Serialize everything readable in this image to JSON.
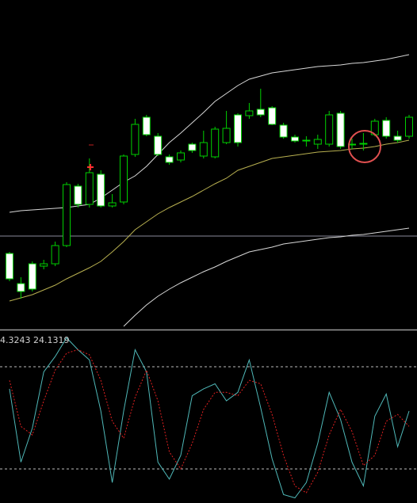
{
  "chart_data": [
    {
      "type": "candlestick",
      "ylim": [
        0,
        415
      ],
      "open": [
        95,
        57,
        82,
        79,
        82,
        105,
        180,
        157,
        195,
        155,
        160,
        220,
        267,
        243,
        217,
        213,
        233,
        218,
        217,
        235,
        270,
        269,
        277,
        279,
        257,
        242,
        238,
        233,
        233,
        272,
        233,
        234,
        245,
        263,
        243,
        243
      ],
      "high": [
        97,
        65,
        85,
        87,
        110,
        185,
        183,
        215,
        200,
        170,
        220,
        265,
        270,
        247,
        220,
        225,
        235,
        250,
        255,
        275,
        272,
        285,
        303,
        281,
        260,
        245,
        243,
        245,
        275,
        275,
        240,
        247,
        265,
        267,
        250,
        270
      ],
      "low": [
        60,
        38,
        47,
        75,
        79,
        103,
        153,
        153,
        153,
        153,
        157,
        217,
        243,
        218,
        207,
        210,
        222,
        215,
        215,
        233,
        230,
        265,
        267,
        257,
        240,
        235,
        230,
        227,
        230,
        227,
        227,
        225,
        243,
        240,
        235,
        240
      ],
      "close": [
        63,
        47,
        50,
        82,
        105,
        182,
        157,
        197,
        155,
        159,
        218,
        258,
        245,
        220,
        210,
        222,
        225,
        235,
        252,
        253,
        235,
        275,
        270,
        258,
        242,
        237,
        237,
        239,
        270,
        230,
        232,
        233,
        262,
        243,
        238,
        267
      ],
      "up_color": "#00d000",
      "down_color": "#ffffff",
      "series": [
        {
          "color": "#d8d8d8",
          "values": [
            147,
            149,
            150,
            151,
            152,
            153,
            155,
            157,
            165,
            175,
            185,
            193,
            205,
            220,
            235,
            247,
            260,
            273,
            287,
            297,
            307,
            315,
            319,
            323,
            325,
            327,
            329,
            331,
            332,
            333,
            335,
            336,
            338,
            340,
            343,
            346
          ]
        },
        {
          "color": "#b8b050",
          "values": [
            35,
            39,
            43,
            49,
            55,
            63,
            70,
            77,
            85,
            97,
            110,
            125,
            135,
            145,
            153,
            160,
            167,
            175,
            183,
            190,
            200,
            205,
            210,
            215,
            217,
            219,
            221,
            223,
            224,
            225,
            227,
            228,
            230,
            233,
            235,
            238
          ]
        },
        {
          "color": "#d8d8d8",
          "values": [
            null,
            null,
            null,
            null,
            null,
            null,
            null,
            null,
            null,
            null,
            3,
            17,
            30,
            41,
            50,
            58,
            65,
            72,
            78,
            85,
            91,
            97,
            100,
            103,
            107,
            109,
            111,
            113,
            115,
            116,
            118,
            119,
            121,
            123,
            125,
            127
          ]
        }
      ],
      "level": 117,
      "level_color": "#8a8a9a"
    },
    {
      "type": "line",
      "label": "4.3243 24.1319",
      "ylim": [
        0,
        100
      ],
      "levels": [
        80,
        20
      ],
      "series": [
        {
          "color": "#4fb8b8",
          "values": [
            67,
            24,
            44,
            77,
            86,
            97,
            90,
            84,
            54,
            12,
            54,
            90,
            77,
            24,
            14,
            28,
            63,
            67,
            70,
            60,
            65,
            84,
            56,
            26,
            5,
            3,
            12,
            35,
            65,
            49,
            24,
            10,
            51,
            64,
            33,
            54
          ]
        },
        {
          "color": "#e02020",
          "dotted": true,
          "values": [
            72,
            45,
            40,
            60,
            78,
            88,
            90,
            87,
            72,
            48,
            38,
            62,
            78,
            60,
            30,
            20,
            35,
            55,
            65,
            65,
            63,
            72,
            70,
            52,
            28,
            10,
            6,
            18,
            40,
            55,
            42,
            22,
            28,
            48,
            52,
            45
          ]
        }
      ]
    }
  ]
}
